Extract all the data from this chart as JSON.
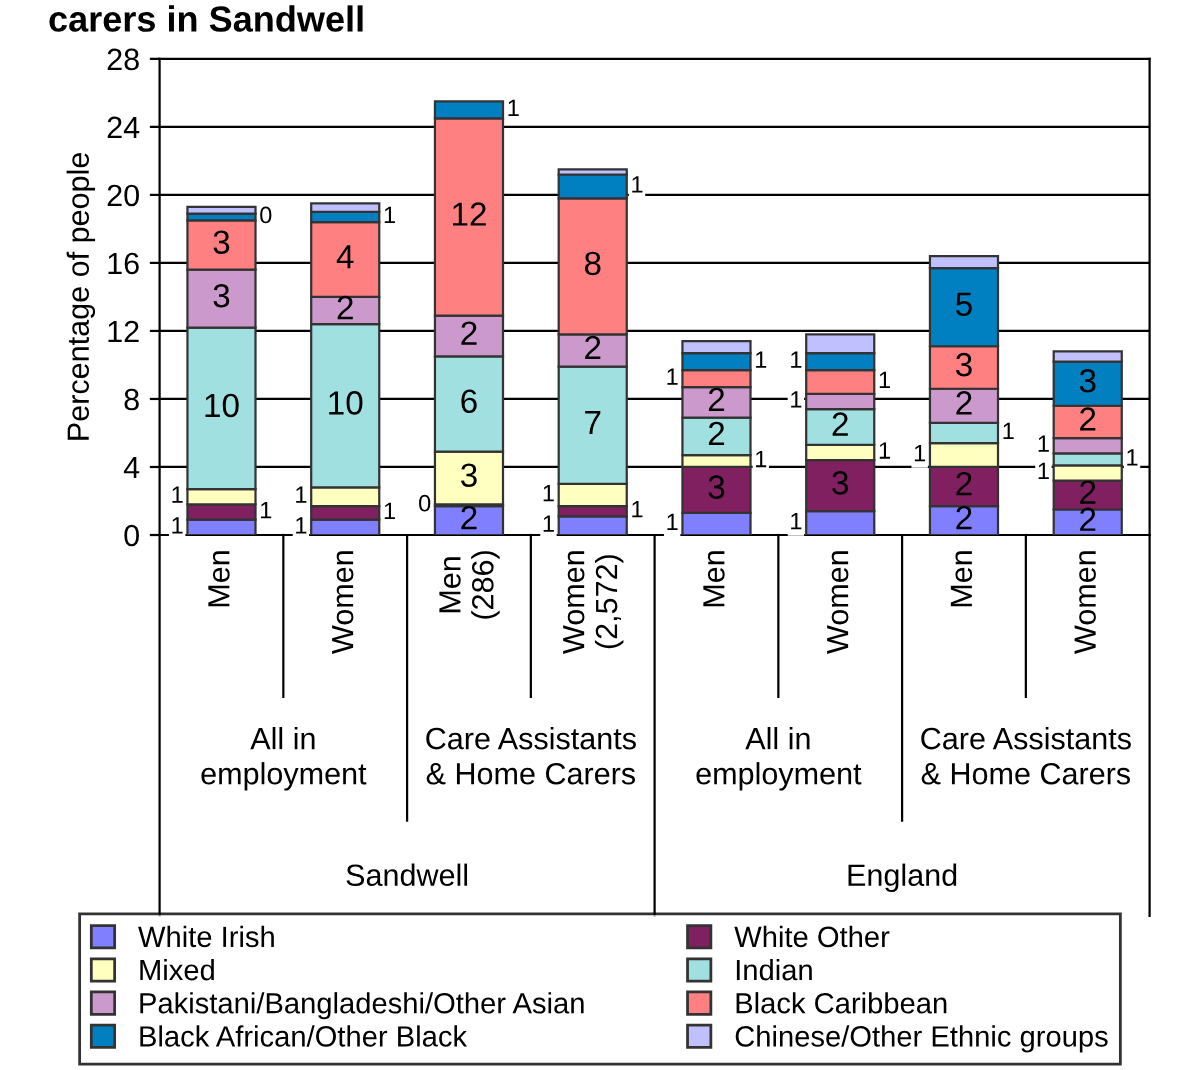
{
  "chart_data": {
    "type": "bar",
    "stacked": true,
    "title": "carers in Sandwell",
    "ylabel": "Percentage of people",
    "categories": [
      "Men",
      "Women",
      "Men\n(286)",
      "Women\n(2,572)",
      "Men",
      "Women",
      "Men",
      "Women"
    ],
    "annotations": [
      "All in\nemployment",
      "Care Assistants\n& Home Carers",
      "All in\nemployment",
      "Care Assistants\n& Home Carers",
      "Sandwell",
      "England"
    ],
    "ylim": [
      0,
      28
    ],
    "yticks": [
      0,
      4,
      8,
      12,
      16,
      20,
      24,
      28
    ],
    "grid": "y",
    "legend": "bottom",
    "series": [
      {
        "name": "White Irish",
        "color": "#8080ff",
        "values": [
          0.9,
          0.9,
          1.7,
          1.1,
          1.3,
          1.4,
          1.7,
          1.5
        ],
        "value_labels": [
          "1",
          "1",
          "2",
          "1",
          "1",
          "1",
          "2",
          "2"
        ]
      },
      {
        "name": "White Other",
        "color": "#802060",
        "values": [
          0.9,
          0.8,
          0.1,
          0.6,
          2.7,
          3.0,
          2.3,
          1.7
        ],
        "value_labels": [
          "1",
          "1",
          "0",
          "1",
          "3",
          "3",
          "2",
          "2"
        ]
      },
      {
        "name": "Mixed",
        "color": "#ffffc0",
        "values": [
          0.9,
          1.1,
          3.1,
          1.3,
          0.7,
          0.9,
          1.4,
          0.9
        ],
        "value_labels": [
          "1",
          "1",
          "3",
          "1",
          "1",
          "1",
          "1",
          "1"
        ]
      },
      {
        "name": "Indian",
        "color": "#a0e0e0",
        "values": [
          9.5,
          9.6,
          5.6,
          6.9,
          2.2,
          2.1,
          1.2,
          0.7
        ],
        "value_labels": [
          "10",
          "10",
          "6",
          "7",
          "2",
          "2",
          "1",
          "1"
        ]
      },
      {
        "name": "Pakistani/Bangladeshi/Other Asian",
        "color": "#cc99cc",
        "values": [
          3.4,
          1.6,
          2.4,
          1.9,
          1.8,
          0.9,
          2.0,
          0.9
        ],
        "value_labels": [
          "3",
          "2",
          "2",
          "2",
          "2",
          "1",
          "2",
          "1"
        ]
      },
      {
        "name": "Black Caribbean",
        "color": "#ff8080",
        "values": [
          2.9,
          4.4,
          11.6,
          8.0,
          1.0,
          1.4,
          2.5,
          1.9
        ],
        "value_labels": [
          "3",
          "4",
          "12",
          "8",
          "1",
          "1",
          "3",
          "2"
        ]
      },
      {
        "name": "Black African/Other Black",
        "color": "#0080c0",
        "values": [
          0.4,
          0.6,
          1.0,
          1.4,
          1.0,
          1.0,
          4.6,
          2.6
        ],
        "value_labels": [
          "0",
          "1",
          "1",
          "1",
          "1",
          "1",
          "5",
          "3"
        ]
      },
      {
        "name": "Chinese/Other Ethnic groups",
        "color": "#c0c0ff",
        "values": [
          0.4,
          0.5,
          null,
          0.3,
          0.7,
          1.1,
          0.7,
          0.6
        ]
      }
    ]
  }
}
